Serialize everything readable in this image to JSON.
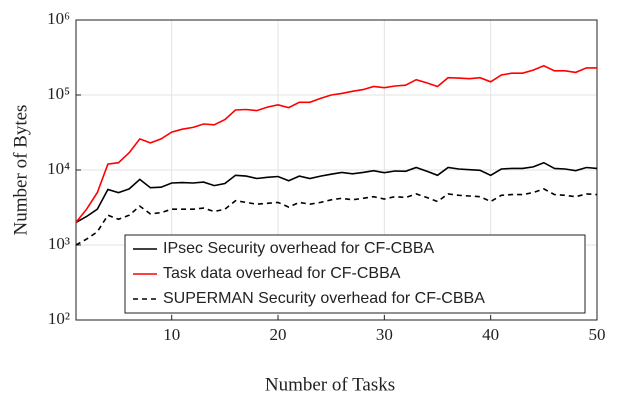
{
  "chart_data": {
    "type": "line",
    "xlabel": "Number of Tasks",
    "ylabel": "Number of Bytes",
    "x": [
      1,
      2,
      3,
      4,
      5,
      6,
      7,
      8,
      9,
      10,
      11,
      12,
      13,
      14,
      15,
      16,
      17,
      18,
      19,
      20,
      21,
      22,
      23,
      24,
      25,
      26,
      27,
      28,
      29,
      30,
      31,
      32,
      33,
      34,
      35,
      36,
      37,
      38,
      39,
      40,
      41,
      42,
      43,
      44,
      45,
      46,
      47,
      48,
      49,
      50
    ],
    "series": [
      {
        "name": "IPsec Security overhead for CF-CBBA",
        "color": "#000000",
        "linestyle": "solid",
        "values": [
          2000,
          2400,
          3000,
          5500,
          5000,
          5600,
          7500,
          5800,
          5900,
          6700,
          6800,
          6700,
          6900,
          6200,
          6600,
          8500,
          8300,
          7700,
          8000,
          8200,
          7200,
          8300,
          7700,
          8300,
          8800,
          9300,
          8900,
          9300,
          9800,
          9200,
          9700,
          9600,
          10800,
          9600,
          8500,
          10800,
          10300,
          10100,
          9900,
          8500,
          10300,
          10500,
          10500,
          11000,
          12500,
          10500,
          10300,
          9800,
          10800,
          10500
        ]
      },
      {
        "name": "Task data overhead for CF-CBBA",
        "color": "#ff0000",
        "linestyle": "solid",
        "values": [
          2000,
          3000,
          5000,
          12000,
          12500,
          17000,
          26000,
          23000,
          26000,
          32000,
          35000,
          37000,
          41000,
          40000,
          47000,
          63000,
          64000,
          62000,
          69000,
          74000,
          68000,
          80000,
          80000,
          90000,
          100000,
          105000,
          112000,
          118000,
          130000,
          125000,
          132000,
          135000,
          160000,
          145000,
          130000,
          170000,
          168000,
          165000,
          170000,
          150000,
          185000,
          195000,
          195000,
          215000,
          245000,
          210000,
          210000,
          200000,
          230000,
          230000
        ]
      },
      {
        "name": "SUPERMAN Security overhead for CF-CBBA",
        "color": "#000000",
        "linestyle": "dashed",
        "values": [
          1000,
          1200,
          1500,
          2500,
          2200,
          2500,
          3300,
          2600,
          2700,
          3000,
          3000,
          3000,
          3100,
          2800,
          3000,
          3900,
          3700,
          3500,
          3600,
          3700,
          3200,
          3700,
          3500,
          3700,
          4000,
          4200,
          4000,
          4200,
          4400,
          4100,
          4400,
          4300,
          4800,
          4300,
          3800,
          4800,
          4600,
          4500,
          4400,
          3800,
          4600,
          4700,
          4700,
          5000,
          5600,
          4700,
          4600,
          4400,
          4800,
          4700
        ]
      }
    ],
    "xlim": [
      1,
      50
    ],
    "xticks": [
      10,
      20,
      30,
      40,
      50
    ],
    "ylim": [
      100,
      1000000
    ],
    "yscale": "log",
    "yticks": [
      {
        "value": 100,
        "label": "10²"
      },
      {
        "value": 1000,
        "label": "10³"
      },
      {
        "value": 10000,
        "label": "10⁴"
      },
      {
        "value": 100000,
        "label": "10⁵"
      },
      {
        "value": 1000000,
        "label": "10⁶"
      }
    ],
    "grid": true,
    "legend": "lower right"
  }
}
